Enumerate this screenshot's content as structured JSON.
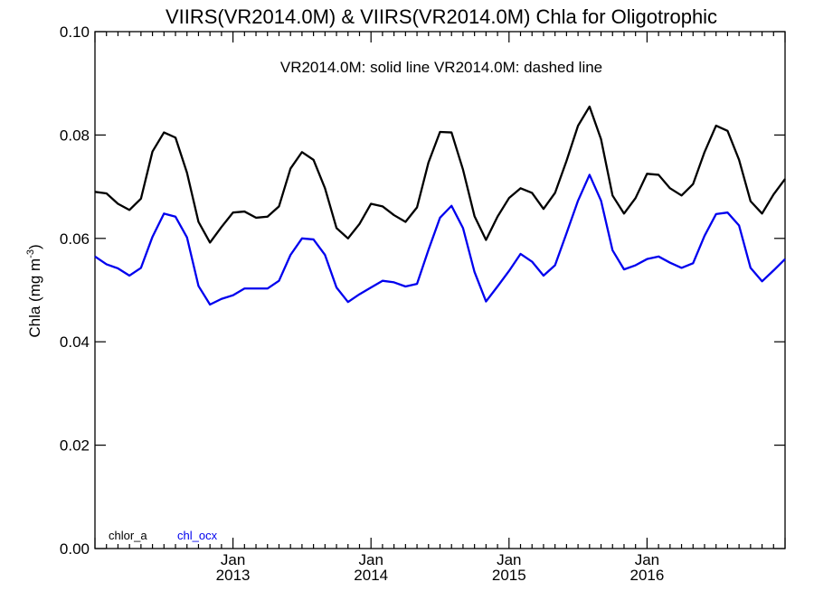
{
  "chart_data": {
    "type": "line",
    "title": "VIIRS(VR2014.0M) & VIIRS(VR2014.0M)  Chla for Oligotrophic",
    "subtitle": "VR2014.0M: solid line   VR2014.0M: dashed line",
    "ylabel": "Chla (mg m",
    "ylabel_sup": "-3",
    "ylabel_close": ")",
    "xlabel": "",
    "ylim": [
      0.0,
      0.1
    ],
    "xlim": [
      "2012-01",
      "2017-01"
    ],
    "y_ticks": [
      "0.00",
      "0.02",
      "0.04",
      "0.06",
      "0.08",
      "0.10"
    ],
    "y_tick_values": [
      0.0,
      0.02,
      0.04,
      0.06,
      0.08,
      0.1
    ],
    "x_ticks": [
      {
        "month": "Jan",
        "year": "2013",
        "date": "2013-01"
      },
      {
        "month": "Jan",
        "year": "2014",
        "date": "2014-01"
      },
      {
        "month": "Jan",
        "year": "2015",
        "date": "2015-01"
      },
      {
        "month": "Jan",
        "year": "2016",
        "date": "2016-01"
      }
    ],
    "grid": false,
    "legend_position": "bottom-left",
    "x": [
      "2012-01",
      "2012-02",
      "2012-03",
      "2012-04",
      "2012-05",
      "2012-06",
      "2012-07",
      "2012-08",
      "2012-09",
      "2012-10",
      "2012-11",
      "2012-12",
      "2013-01",
      "2013-02",
      "2013-03",
      "2013-04",
      "2013-05",
      "2013-06",
      "2013-07",
      "2013-08",
      "2013-09",
      "2013-10",
      "2013-11",
      "2013-12",
      "2014-01",
      "2014-02",
      "2014-03",
      "2014-04",
      "2014-05",
      "2014-06",
      "2014-07",
      "2014-08",
      "2014-09",
      "2014-10",
      "2014-11",
      "2014-12",
      "2015-01",
      "2015-02",
      "2015-03",
      "2015-04",
      "2015-05",
      "2015-06",
      "2015-07",
      "2015-08",
      "2015-09",
      "2015-10",
      "2015-11",
      "2015-12",
      "2016-01",
      "2016-02",
      "2016-03",
      "2016-04",
      "2016-05",
      "2016-06",
      "2016-07",
      "2016-08",
      "2016-09",
      "2016-10",
      "2016-11",
      "2016-12",
      "2017-01"
    ],
    "series": [
      {
        "name": "chlor_a",
        "color": "#000000",
        "values": [
          0.069,
          0.0687,
          0.0667,
          0.0655,
          0.0677,
          0.0768,
          0.0805,
          0.0795,
          0.0727,
          0.0632,
          0.0592,
          0.0622,
          0.065,
          0.0652,
          0.064,
          0.0642,
          0.0662,
          0.0735,
          0.0767,
          0.0752,
          0.0697,
          0.062,
          0.06,
          0.0628,
          0.0667,
          0.0662,
          0.0645,
          0.0632,
          0.066,
          0.0747,
          0.0806,
          0.0805,
          0.0733,
          0.0643,
          0.0597,
          0.0642,
          0.0678,
          0.0697,
          0.0688,
          0.0657,
          0.0688,
          0.075,
          0.0818,
          0.0855,
          0.0792,
          0.0683,
          0.0648,
          0.0678,
          0.0725,
          0.0723,
          0.0697,
          0.0683,
          0.0705,
          0.0767,
          0.0818,
          0.0808,
          0.0752,
          0.0672,
          0.0648,
          0.0685,
          0.0715
        ]
      },
      {
        "name": "chl_ocx",
        "color": "#0000ee",
        "values": [
          0.0565,
          0.055,
          0.0542,
          0.0528,
          0.0543,
          0.0603,
          0.0648,
          0.0642,
          0.0602,
          0.0508,
          0.0472,
          0.0483,
          0.049,
          0.0503,
          0.0503,
          0.0503,
          0.0518,
          0.0568,
          0.06,
          0.0598,
          0.0568,
          0.0505,
          0.0477,
          0.0492,
          0.0505,
          0.0518,
          0.0515,
          0.0507,
          0.0512,
          0.0578,
          0.064,
          0.0663,
          0.062,
          0.0535,
          0.0478,
          0.0507,
          0.0537,
          0.057,
          0.0555,
          0.0528,
          0.0548,
          0.061,
          0.0673,
          0.0723,
          0.0673,
          0.0577,
          0.054,
          0.0548,
          0.056,
          0.0565,
          0.0553,
          0.0543,
          0.0552,
          0.0605,
          0.0647,
          0.065,
          0.0625,
          0.0543,
          0.0517,
          0.0538,
          0.056
        ]
      }
    ]
  }
}
